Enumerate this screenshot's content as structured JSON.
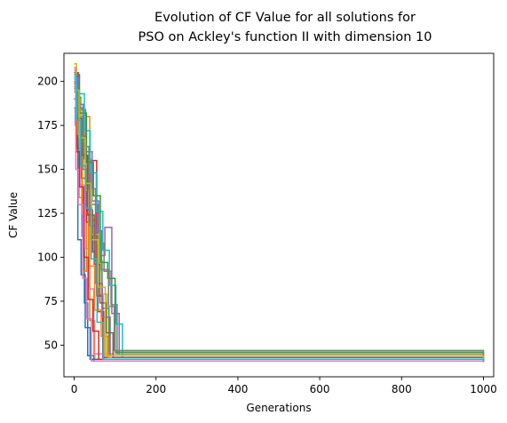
{
  "chart_data": {
    "type": "line",
    "title_lines": [
      "Evolution of CF Value for all solutions for",
      "PSO on Ackley's function II with dimension 10"
    ],
    "xlabel": "Generations",
    "ylabel": "CF Value",
    "xlim": [
      -25,
      1025
    ],
    "ylim": [
      32,
      216
    ],
    "xticks": [
      0,
      200,
      400,
      600,
      800,
      1000
    ],
    "yticks": [
      50,
      75,
      100,
      125,
      150,
      175,
      200
    ],
    "grid": false,
    "legend": "none",
    "final_value": 40.5,
    "colors": [
      "#1f77b4",
      "#ff7f0e",
      "#2ca02c",
      "#d62728",
      "#9467bd",
      "#8c564b",
      "#e377c2",
      "#7f7f7f",
      "#bcbd22",
      "#17becf"
    ],
    "series": [
      {
        "x": [
          0,
          4,
          11,
          19,
          25,
          33,
          48,
          1000
        ],
        "y": [
          199,
          186,
          160,
          112,
          74,
          44,
          41,
          40.5
        ]
      },
      {
        "x": [
          0,
          6,
          12,
          22,
          30,
          38,
          50,
          1000
        ],
        "y": [
          208,
          172,
          134,
          92,
          180,
          64,
          42,
          40.5
        ]
      },
      {
        "x": [
          0,
          8,
          16,
          27,
          38,
          52,
          68,
          85,
          1000
        ],
        "y": [
          203,
          191,
          169,
          144,
          121,
          98,
          71,
          44,
          40.5
        ]
      },
      {
        "x": [
          0,
          10,
          20,
          30,
          40,
          55,
          70,
          1000
        ],
        "y": [
          205,
          176,
          150,
          120,
          155,
          78,
          43,
          40.5
        ]
      },
      {
        "x": [
          0,
          12,
          28,
          44,
          60,
          75,
          92,
          110,
          1000
        ],
        "y": [
          196,
          184,
          160,
          132,
          101,
          117,
          68,
          45,
          40.5
        ]
      },
      {
        "x": [
          0,
          7,
          18,
          32,
          45,
          58,
          72,
          1000
        ],
        "y": [
          200,
          162,
          145,
          127,
          103,
          69,
          42,
          40.5
        ]
      },
      {
        "x": [
          0,
          5,
          14,
          26,
          36,
          48,
          1000
        ],
        "y": [
          207,
          188,
          141,
          105,
          82,
          45,
          40.5
        ]
      },
      {
        "x": [
          0,
          9,
          24,
          40,
          57,
          73,
          90,
          105,
          1000
        ],
        "y": [
          194,
          180,
          156,
          130,
          108,
          92,
          73,
          45,
          40.5
        ]
      },
      {
        "x": [
          0,
          6,
          15,
          29,
          43,
          61,
          80,
          1000
        ],
        "y": [
          210,
          190,
          166,
          138,
          113,
          79,
          44,
          40.5
        ]
      },
      {
        "x": [
          0,
          11,
          25,
          39,
          54,
          70,
          86,
          102,
          118,
          1000
        ],
        "y": [
          201,
          193,
          172,
          148,
          126,
          104,
          84,
          62,
          43,
          40.5
        ]
      },
      {
        "x": [
          0,
          3,
          9,
          17,
          27,
          39,
          1000
        ],
        "y": [
          185,
          175,
          110,
          90,
          60,
          42,
          40.5
        ]
      },
      {
        "x": [
          0,
          8,
          20,
          35,
          50,
          66,
          83,
          1000
        ],
        "y": [
          198,
          170,
          125,
          95,
          70,
          55,
          43,
          40.5
        ]
      },
      {
        "x": [
          0,
          13,
          30,
          47,
          64,
          82,
          100,
          1000
        ],
        "y": [
          204,
          182,
          154,
          135,
          97,
          88,
          46,
          40.5
        ]
      },
      {
        "x": [
          0,
          5,
          13,
          23,
          34,
          46,
          60,
          1000
        ],
        "y": [
          190,
          160,
          140,
          100,
          76,
          58,
          42,
          40.5
        ]
      },
      {
        "x": [
          0,
          10,
          22,
          37,
          53,
          69,
          88,
          1000
        ],
        "y": [
          202,
          187,
          150,
          118,
          85,
          66,
          44,
          40.5
        ]
      },
      {
        "x": [
          0,
          7,
          19,
          33,
          49,
          63,
          78,
          95,
          1000
        ],
        "y": [
          197,
          179,
          158,
          124,
          96,
          74,
          57,
          43,
          40.5
        ]
      },
      {
        "x": [
          0,
          4,
          10,
          21,
          31,
          42,
          1000
        ],
        "y": [
          206,
          150,
          130,
          88,
          65,
          41,
          40.5
        ]
      },
      {
        "x": [
          0,
          9,
          21,
          36,
          52,
          67,
          84,
          98,
          1000
        ],
        "y": [
          199,
          185,
          163,
          139,
          115,
          93,
          72,
          47,
          40.5
        ]
      },
      {
        "x": [
          0,
          12,
          27,
          41,
          58,
          76,
          1000
        ],
        "y": [
          195,
          168,
          142,
          110,
          83,
          44,
          40.5
        ]
      },
      {
        "x": [
          0,
          6,
          16,
          28,
          42,
          56,
          71,
          1000
        ],
        "y": [
          203,
          178,
          152,
          128,
          99,
          63,
          42,
          40.5
        ]
      }
    ]
  }
}
